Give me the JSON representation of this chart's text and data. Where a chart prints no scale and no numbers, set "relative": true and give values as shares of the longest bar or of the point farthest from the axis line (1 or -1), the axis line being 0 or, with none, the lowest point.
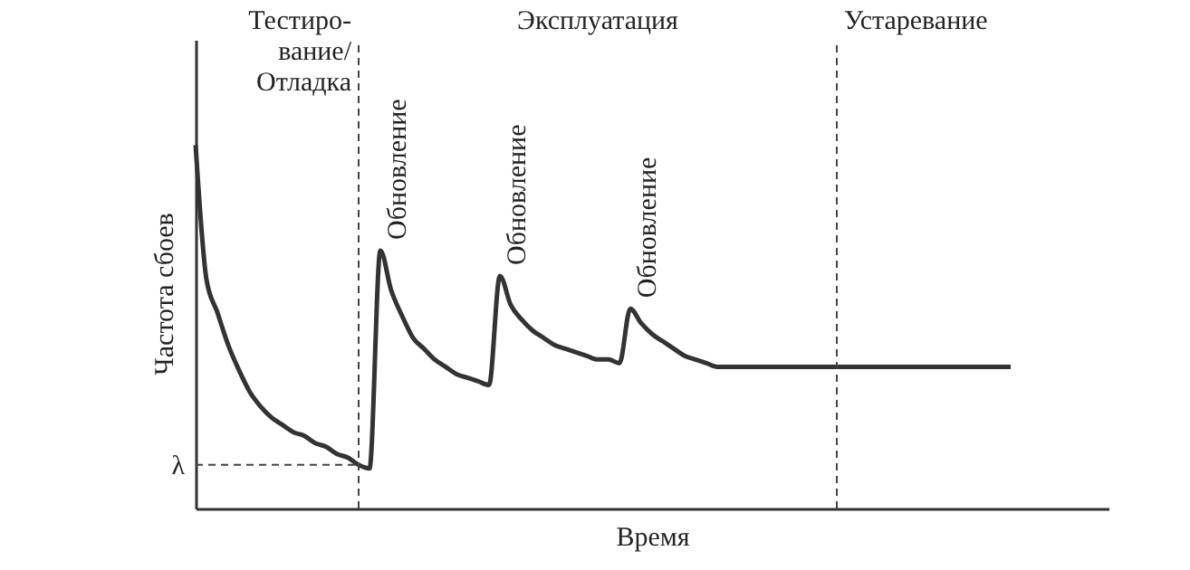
{
  "chart_data": {
    "type": "line",
    "relative": true,
    "xlabel": "Время",
    "ylabel": "Частота сбоев",
    "categories": [
      null,
      null,
      null,
      null,
      null,
      null,
      null,
      null,
      null,
      null,
      null,
      null,
      null,
      null,
      null,
      null,
      null,
      null,
      null,
      null,
      null,
      null,
      null,
      null,
      null,
      null,
      null,
      null,
      null,
      null,
      null,
      null,
      null,
      null,
      null,
      null,
      null,
      null,
      null,
      null,
      null,
      null,
      null,
      null,
      null,
      null,
      null,
      null,
      null,
      null,
      null,
      null,
      null,
      null,
      null,
      null,
      null,
      null,
      null,
      null,
      null,
      null,
      null,
      null,
      null,
      null,
      null,
      null,
      null,
      null,
      null,
      null,
      null,
      null,
      null,
      null,
      null,
      null,
      null,
      null,
      null,
      null,
      null,
      null,
      null
    ],
    "series": [
      {
        "color": "#333333",
        "values": [
          1.0,
          0.63,
          0.54,
          0.45,
          0.38,
          0.32,
          0.28,
          0.25,
          0.23,
          0.21,
          0.2,
          0.18,
          0.17,
          0.15,
          0.14,
          0.12,
          0.11,
          0.71,
          0.6,
          0.53,
          0.47,
          0.44,
          0.41,
          0.39,
          0.37,
          0.36,
          0.35,
          0.34,
          0.64,
          0.56,
          0.52,
          0.49,
          0.47,
          0.45,
          0.44,
          0.43,
          0.42,
          0.41,
          0.41,
          0.4,
          0.55,
          0.51,
          0.48,
          0.46,
          0.44,
          0.42,
          0.41,
          0.4,
          0.39,
          0.39,
          0.39,
          0.39,
          0.39,
          0.39,
          0.39,
          0.39,
          0.39,
          0.39,
          0.39,
          0.39,
          0.39,
          0.39,
          0.39,
          0.39,
          0.39,
          0.39,
          0.39,
          0.39,
          0.39,
          0.39,
          0.39,
          0.39,
          0.39,
          0.39,
          0.39,
          0.39,
          null,
          null,
          null,
          null,
          null,
          null,
          null,
          null,
          null
        ]
      }
    ],
    "ref_lines": [
      {
        "axis": "y",
        "value": 0.12,
        "label": "λ",
        "line_style": "dashed"
      }
    ],
    "annotations": [
      "Тестиро-\nвание/\nОтладка",
      "Эксплуатация",
      "Устаревание",
      "Обновление",
      "Обновление",
      "Обновление"
    ],
    "grid": false,
    "marker": "none",
    "line_style": "solid"
  }
}
